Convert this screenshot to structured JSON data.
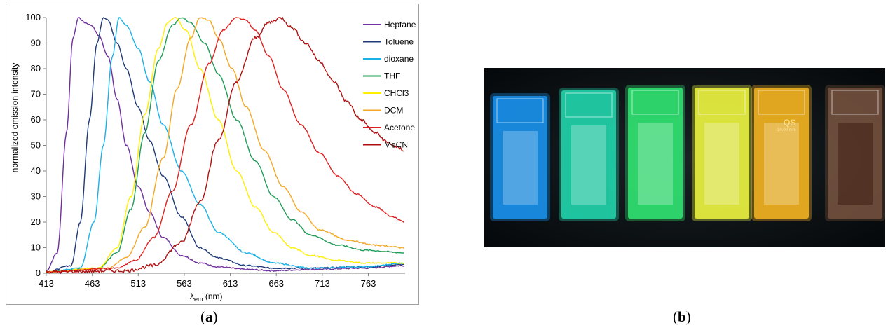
{
  "chart_data": {
    "type": "line",
    "xlabel_main": "λ",
    "xlabel_sub": "em",
    "xlabel_unit": " (nm)",
    "ylabel": "normalized emission intensity",
    "xlim": [
      413,
      803
    ],
    "ylim": [
      0,
      100
    ],
    "x_ticks": [
      413,
      463,
      513,
      563,
      613,
      663,
      713,
      763
    ],
    "y_ticks": [
      0,
      10,
      20,
      30,
      40,
      50,
      60,
      70,
      80,
      90,
      100
    ],
    "legend_position": "right",
    "series": [
      {
        "name": "Heptane",
        "color": "#7030a0",
        "x": [
          413,
          425,
          435,
          442,
          448,
          455,
          462,
          470,
          480,
          490,
          500,
          513,
          525,
          540,
          560,
          580,
          600,
          630,
          660,
          700,
          760,
          803
        ],
        "y": [
          1,
          8,
          55,
          92,
          100,
          98,
          97,
          93,
          85,
          68,
          50,
          34,
          24,
          14,
          7,
          4,
          2.5,
          1.5,
          1,
          1.5,
          2,
          3
        ]
      },
      {
        "name": "Toluene",
        "color": "#1f3a7a",
        "x": [
          413,
          440,
          450,
          460,
          468,
          475,
          480,
          490,
          500,
          513,
          525,
          540,
          560,
          580,
          600,
          630,
          660,
          700,
          760,
          803
        ],
        "y": [
          0.5,
          3,
          20,
          60,
          90,
          100,
          99,
          90,
          80,
          65,
          52,
          38,
          22,
          10,
          6,
          3,
          2,
          2,
          2.5,
          3.5
        ]
      },
      {
        "name": "dioxane",
        "color": "#1ab0e8",
        "x": [
          413,
          450,
          465,
          475,
          485,
          492,
          500,
          513,
          525,
          540,
          560,
          580,
          600,
          630,
          660,
          700,
          760,
          803
        ],
        "y": [
          0.5,
          2,
          20,
          50,
          85,
          100,
          97,
          88,
          75,
          58,
          40,
          27,
          16,
          8,
          4,
          2,
          2.5,
          4
        ]
      },
      {
        "name": "THF",
        "color": "#1e9c57",
        "x": [
          413,
          470,
          490,
          505,
          520,
          535,
          550,
          560,
          570,
          585,
          600,
          620,
          640,
          660,
          680,
          700,
          730,
          760,
          803
        ],
        "y": [
          0.5,
          2,
          8,
          25,
          55,
          83,
          97,
          100,
          98,
          90,
          78,
          60,
          44,
          30,
          21,
          15,
          11,
          9,
          8
        ]
      },
      {
        "name": "CHCl3",
        "color": "#ffee00",
        "x": [
          413,
          470,
          490,
          505,
          520,
          535,
          545,
          553,
          565,
          580,
          600,
          620,
          640,
          660,
          680,
          700,
          730,
          760,
          803
        ],
        "y": [
          0.5,
          2,
          10,
          30,
          62,
          88,
          98,
          100,
          95,
          80,
          60,
          40,
          26,
          16,
          10,
          7,
          5,
          4,
          4
        ]
      },
      {
        "name": "DCM",
        "color": "#f5a623",
        "x": [
          413,
          480,
          500,
          520,
          540,
          555,
          570,
          580,
          590,
          600,
          615,
          630,
          650,
          670,
          690,
          710,
          740,
          770,
          803
        ],
        "y": [
          0.5,
          2,
          6,
          18,
          45,
          72,
          92,
          100,
          99,
          92,
          80,
          65,
          48,
          34,
          24,
          17,
          13,
          11,
          10
        ]
      },
      {
        "name": "Acetone",
        "color": "#e02020",
        "x": [
          413,
          490,
          510,
          530,
          550,
          570,
          590,
          605,
          620,
          630,
          640,
          655,
          670,
          690,
          710,
          730,
          750,
          770,
          790,
          803
        ],
        "y": [
          0.5,
          2,
          5,
          14,
          32,
          58,
          82,
          95,
          100,
          99,
          95,
          85,
          72,
          58,
          47,
          38,
          31,
          26,
          22,
          20
        ]
      },
      {
        "name": "MeCN",
        "color": "#b01010",
        "x": [
          413,
          500,
          530,
          560,
          580,
          600,
          620,
          640,
          655,
          668,
          680,
          695,
          710,
          725,
          740,
          755,
          770,
          785,
          795,
          803
        ],
        "y": [
          0.5,
          1,
          3,
          12,
          28,
          52,
          75,
          92,
          98,
          100,
          96,
          90,
          83,
          75,
          67,
          60,
          55,
          51,
          49,
          48
        ]
      }
    ]
  },
  "captions": {
    "a_open": "(",
    "a_letter": "a",
    "a_close": ")",
    "b_open": "(",
    "b_letter": "b",
    "b_close": ")"
  },
  "photo": {
    "description_colors": [
      "#1a8fe8",
      "#20d0a8",
      "#30e070",
      "#e8f040",
      "#f0b020",
      "#9a6a50"
    ],
    "cuvette_label": "QS",
    "cuvette_sublabel": "10.00 mm"
  }
}
